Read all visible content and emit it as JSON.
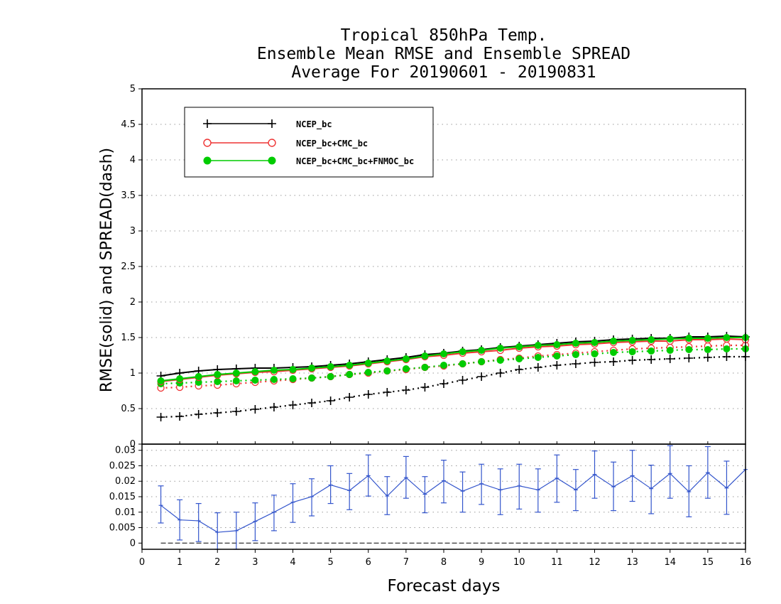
{
  "title_lines": [
    "Tropical 850hPa Temp.",
    "Ensemble Mean RMSE and Ensemble SPREAD",
    "Average For 20190601 - 20190831"
  ],
  "colors": {
    "ncep": "#000000",
    "cmc": "#ee3333",
    "fnmoc": "#00cc00",
    "diff": "#3355cc"
  },
  "chart_data": [
    {
      "type": "line",
      "title": "Tropical 850hPa Temp. Ensemble Mean RMSE and Ensemble SPREAD Average For 20190601 - 20190831",
      "ylabel": "RMSE(solid) and SPREAD(dash)",
      "xlabel": "Forecast days",
      "xlim": [
        0,
        16
      ],
      "ylim": [
        0,
        5
      ],
      "xticks": [
        "0",
        "1",
        "2",
        "3",
        "4",
        "5",
        "6",
        "7",
        "8",
        "9",
        "10",
        "11",
        "12",
        "13",
        "14",
        "15",
        "16"
      ],
      "yticks": [
        "0",
        "0.5",
        "1",
        "1.5",
        "2",
        "2.5",
        "3",
        "3.5",
        "4",
        "4.5",
        "5"
      ],
      "grid": true,
      "legend_position": "top-left",
      "x": [
        0.5,
        1,
        1.5,
        2,
        2.5,
        3,
        3.5,
        4,
        4.5,
        5,
        5.5,
        6,
        6.5,
        7,
        7.5,
        8,
        8.5,
        9,
        9.5,
        10,
        10.5,
        11,
        11.5,
        12,
        12.5,
        13,
        13.5,
        14,
        14.5,
        15,
        15.5,
        16
      ],
      "series": [
        {
          "name": "NCEP_bc",
          "style": "rmse",
          "values": [
            0.96,
            1.0,
            1.03,
            1.05,
            1.06,
            1.07,
            1.07,
            1.08,
            1.09,
            1.11,
            1.13,
            1.16,
            1.19,
            1.22,
            1.26,
            1.28,
            1.31,
            1.33,
            1.36,
            1.38,
            1.4,
            1.42,
            1.44,
            1.45,
            1.47,
            1.48,
            1.49,
            1.49,
            1.51,
            1.51,
            1.52,
            1.51
          ]
        },
        {
          "name": "NCEP_bc+CMC_bc",
          "style": "rmse",
          "values": [
            0.88,
            0.91,
            0.94,
            0.97,
            0.99,
            1.01,
            1.02,
            1.04,
            1.06,
            1.08,
            1.1,
            1.13,
            1.16,
            1.19,
            1.23,
            1.25,
            1.28,
            1.3,
            1.32,
            1.35,
            1.37,
            1.38,
            1.4,
            1.41,
            1.43,
            1.44,
            1.45,
            1.45,
            1.47,
            1.47,
            1.48,
            1.47
          ]
        },
        {
          "name": "NCEP_bc+CMC_bc+FNMOC_bc",
          "style": "rmse",
          "values": [
            0.89,
            0.92,
            0.95,
            0.98,
            1.0,
            1.02,
            1.04,
            1.05,
            1.07,
            1.09,
            1.11,
            1.14,
            1.17,
            1.2,
            1.24,
            1.27,
            1.3,
            1.32,
            1.35,
            1.37,
            1.39,
            1.4,
            1.42,
            1.43,
            1.45,
            1.46,
            1.47,
            1.48,
            1.49,
            1.49,
            1.5,
            1.5
          ]
        },
        {
          "name": "NCEP_bc",
          "style": "spread",
          "values": [
            0.38,
            0.39,
            0.42,
            0.44,
            0.46,
            0.49,
            0.52,
            0.55,
            0.58,
            0.61,
            0.66,
            0.7,
            0.73,
            0.76,
            0.8,
            0.85,
            0.9,
            0.95,
            1.0,
            1.05,
            1.08,
            1.11,
            1.13,
            1.15,
            1.16,
            1.18,
            1.19,
            1.2,
            1.21,
            1.22,
            1.23,
            1.23
          ]
        },
        {
          "name": "NCEP_bc+CMC_bc",
          "style": "spread",
          "values": [
            0.79,
            0.8,
            0.82,
            0.83,
            0.85,
            0.87,
            0.89,
            0.91,
            0.93,
            0.95,
            0.98,
            1.0,
            1.03,
            1.05,
            1.08,
            1.1,
            1.13,
            1.16,
            1.19,
            1.21,
            1.24,
            1.26,
            1.28,
            1.3,
            1.32,
            1.34,
            1.35,
            1.36,
            1.37,
            1.38,
            1.39,
            1.39
          ]
        },
        {
          "name": "NCEP_bc+CMC_bc+FNMOC_bc",
          "style": "spread",
          "values": [
            0.85,
            0.86,
            0.87,
            0.88,
            0.89,
            0.9,
            0.91,
            0.92,
            0.93,
            0.95,
            0.98,
            1.01,
            1.03,
            1.06,
            1.08,
            1.11,
            1.13,
            1.16,
            1.18,
            1.2,
            1.22,
            1.24,
            1.26,
            1.27,
            1.29,
            1.3,
            1.31,
            1.32,
            1.33,
            1.33,
            1.34,
            1.34
          ]
        }
      ]
    },
    {
      "type": "line",
      "xlabel": "Forecast days",
      "xlim": [
        0,
        16
      ],
      "ylim": [
        -0.002,
        0.032
      ],
      "yticks": [
        "0",
        "0.005",
        "0.01",
        "0.015",
        "0.02",
        "0.025",
        "0.03"
      ],
      "zero_line": "dashed",
      "x": [
        0.5,
        1,
        1.5,
        2,
        2.5,
        3,
        3.5,
        4,
        4.5,
        5,
        5.5,
        6,
        6.5,
        7,
        7.5,
        8,
        8.5,
        9,
        9.5,
        10,
        10.5,
        11,
        11.5,
        12,
        12.5,
        13,
        13.5,
        14,
        14.5,
        15,
        15.5,
        16
      ],
      "values": [
        0.0122,
        0.0075,
        0.0072,
        0.0035,
        0.004,
        0.007,
        0.01,
        0.0132,
        0.015,
        0.0188,
        0.017,
        0.0218,
        0.0152,
        0.0212,
        0.0158,
        0.0202,
        0.0168,
        0.0192,
        0.0172,
        0.0185,
        0.0172,
        0.021,
        0.0172,
        0.0222,
        0.0182,
        0.0218,
        0.0176,
        0.0225,
        0.0166,
        0.0228,
        0.0178,
        0.0238
      ],
      "err_low": [
        0.0065,
        0.001,
        0.0005,
        -0.003,
        -0.002,
        0.0008,
        0.004,
        0.0067,
        0.0088,
        0.0128,
        0.0108,
        0.0152,
        0.0092,
        0.0145,
        0.0098,
        0.013,
        0.01,
        0.0125,
        0.0092,
        0.011,
        0.01,
        0.0132,
        0.0105,
        0.0145,
        0.0105,
        0.0135,
        0.0095,
        0.0145,
        0.0085,
        0.0145,
        0.0093,
        0.0155
      ],
      "err_high": [
        0.0185,
        0.014,
        0.0128,
        0.0098,
        0.01,
        0.013,
        0.0155,
        0.0192,
        0.0208,
        0.025,
        0.0225,
        0.0285,
        0.0215,
        0.028,
        0.0215,
        0.0268,
        0.023,
        0.0255,
        0.024,
        0.0255,
        0.024,
        0.0285,
        0.0238,
        0.0298,
        0.0262,
        0.03,
        0.0252,
        0.0315,
        0.025,
        0.0312,
        0.0265,
        0.024
      ]
    }
  ]
}
